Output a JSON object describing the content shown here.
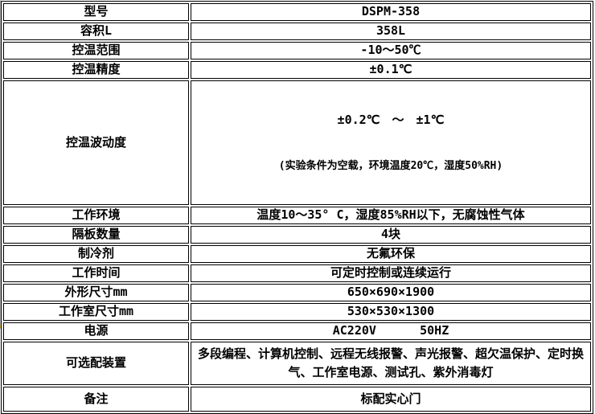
{
  "table": {
    "rows": [
      {
        "label": "型号",
        "value": "DSPM-358"
      },
      {
        "label": "容积L",
        "value": "358L"
      },
      {
        "label": "控温范围",
        "value": "-10～50℃"
      },
      {
        "label": "控温精度",
        "value": "±0.1℃"
      },
      {
        "label": "控温波动度",
        "value": "±0.2℃　～　±1℃",
        "value2": "(实验条件为空载，环境温度20℃，湿度50%RH)"
      },
      {
        "label": "工作环境",
        "value": "温度10～35° C，湿度85%RH以下，无腐蚀性气体"
      },
      {
        "label": "隔板数量",
        "value": "4块"
      },
      {
        "label": "制冷剂",
        "value": "无氟环保"
      },
      {
        "label": "工作时间",
        "value": "可定时控制或连续运行"
      },
      {
        "label": "外形尺寸mm",
        "value": "650×690×1900"
      },
      {
        "label": "工作室尺寸mm",
        "value": "530×530×1300"
      },
      {
        "label": "电源",
        "value": "AC220V      50HZ"
      },
      {
        "label": "可选配装置",
        "value": "多段编程、计算机控制、远程无线报警、声光报警、超欠温保护、定时换气、工作室电源、测试孔、紫外消毒灯"
      },
      {
        "label": "备注",
        "value": "标配实心门"
      }
    ]
  },
  "colors": {
    "text": "#000000",
    "border": "#000000",
    "background": "#ffffff",
    "edge_line": "#b9b9b9",
    "corner_mark": "#d9b944"
  }
}
